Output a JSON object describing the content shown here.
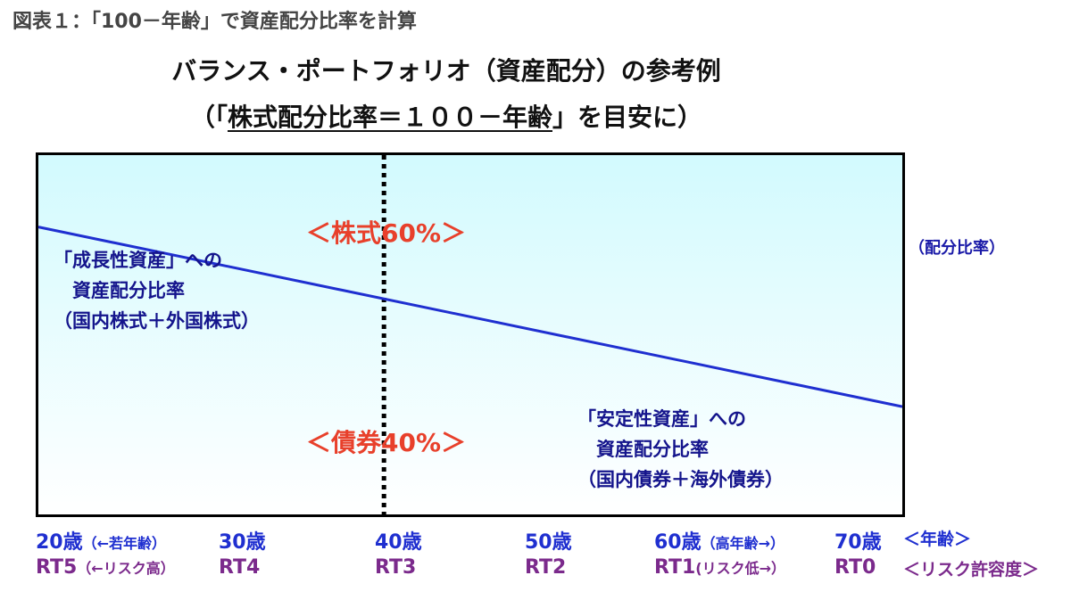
{
  "figure_caption": "図表１：「100－年齢」で資産配分比率を計算",
  "title_line1": "バランス・ポートフォリオ（資産配分）の参考例",
  "title_line2_prefix": "（「",
  "title_line2_underlined": "株式配分比率＝１００－年齢",
  "title_line2_suffix": "」を目安に）",
  "label_stock": "＜株式60%＞",
  "label_bond": "＜債券40%＞",
  "line_label": "（配分比率）",
  "growth_asset_text": [
    "「成長性資産」への",
    "　資産配分比率",
    "（国内株式＋外国株式）"
  ],
  "stable_asset_text": [
    "「安定性資産」への",
    "　資産配分比率",
    "（国内債券＋海外債券）"
  ],
  "age_axis": {
    "ticks": [
      "20歳",
      "30歳",
      "40歳",
      "50歳",
      "60歳",
      "70歳"
    ],
    "note_20": "（←若年齢）",
    "note_60": "（高年齢→）",
    "unit": "＜年齢＞"
  },
  "rt_axis": {
    "ticks": [
      "RT5",
      "RT4",
      "RT3",
      "RT2",
      "RT1",
      "RT0"
    ],
    "note_rt5": "（←リスク高）",
    "note_rt1": "(リスク低→）",
    "unit": "＜リスク許容度＞"
  },
  "colors": {
    "line": "#1f2fd0",
    "dotted": "#000000",
    "red_label": "#e8402b",
    "age_text": "#1f2fd0",
    "rt_text": "#7b2a8c",
    "box_top": "#d2fafe"
  },
  "chart_data": {
    "type": "line",
    "x": [
      20,
      70
    ],
    "series": [
      {
        "values": [
          80,
          30
        ]
      }
    ],
    "xlim": [
      20,
      70
    ],
    "highlight_x": 40
  }
}
